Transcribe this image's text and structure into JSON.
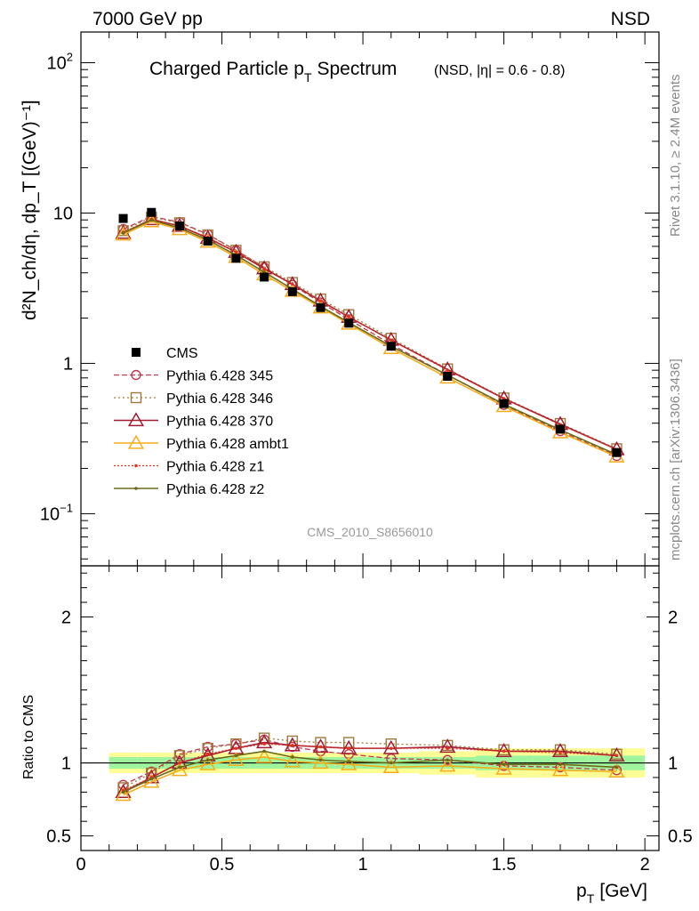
{
  "header": {
    "beam": "7000 GeV pp",
    "process": "NSD",
    "title_main": "Charged Particle p",
    "title_sub": "T",
    "title_main2": "Spectrum",
    "title_cond": "(NSD, |η| = 0.6 - 0.8)",
    "analysis_id": "CMS_2010_S8656010",
    "side_rivet": "Rivet 3.1.10, ≥ 2.4M events",
    "side_url": "mcplots.cern.ch [arXiv:1306.3436]"
  },
  "chart_data": {
    "type": "line",
    "x_unit_label": "p_T [GeV]",
    "xlabel_main": "p",
    "xlabel_sub": "T",
    "xlabel_tail": "[GeV]",
    "ylabel": "d²N_ch/dη, dp_T [(GeV)⁻¹]",
    "ratio_ylabel": "Ratio to CMS",
    "xlim": [
      0,
      2.05
    ],
    "ylim": [
      0.045,
      160
    ],
    "yscale": "log",
    "ratio_ylim": [
      0.4,
      2.35
    ],
    "x_ticks": [
      "0",
      "0.5",
      "1",
      "1.5",
      "2"
    ],
    "y_ticks": [
      "10^-1",
      "1",
      "10",
      "10^2"
    ],
    "ratio_ticks": [
      "0.5",
      "1",
      "2"
    ],
    "legend_position": "middle-left",
    "data": {
      "name": "CMS",
      "x": [
        0.15,
        0.25,
        0.35,
        0.45,
        0.55,
        0.65,
        0.75,
        0.85,
        0.95,
        1.1,
        1.3,
        1.5,
        1.7,
        1.9
      ],
      "y": [
        9.2,
        10.1,
        8.2,
        6.5,
        5.0,
        3.75,
        3.0,
        2.35,
        1.85,
        1.3,
        0.82,
        0.54,
        0.365,
        0.255
      ],
      "band_inner": [
        0.04,
        0.04,
        0.04,
        0.04,
        0.04,
        0.04,
        0.04,
        0.04,
        0.04,
        0.04,
        0.04,
        0.05,
        0.05,
        0.05
      ],
      "band_outer": [
        0.07,
        0.07,
        0.07,
        0.07,
        0.07,
        0.07,
        0.07,
        0.07,
        0.07,
        0.07,
        0.08,
        0.1,
        0.1,
        0.1
      ]
    },
    "series": [
      {
        "name": "Pythia 6.428 345",
        "color": "#c0394f",
        "dash": "6,3",
        "marker": "circle",
        "ratio": [
          0.85,
          0.94,
          1.06,
          1.11,
          1.13,
          1.16,
          1.11,
          1.08,
          1.06,
          1.03,
          1.02,
          0.98,
          0.97,
          0.95
        ]
      },
      {
        "name": "Pythia 6.428 346",
        "color": "#a07a3c",
        "dash": "2,3",
        "marker": "square",
        "ratio": [
          0.83,
          0.93,
          1.05,
          1.1,
          1.13,
          1.17,
          1.15,
          1.14,
          1.14,
          1.13,
          1.12,
          1.09,
          1.09,
          1.06
        ]
      },
      {
        "name": "Pythia 6.428 370",
        "color": "#a01c32",
        "dash": "",
        "marker": "triangle",
        "ratio": [
          0.8,
          0.9,
          1.0,
          1.05,
          1.1,
          1.14,
          1.12,
          1.11,
          1.1,
          1.1,
          1.11,
          1.08,
          1.08,
          1.05
        ]
      },
      {
        "name": "Pythia 6.428 ambt1",
        "color": "#f5ac1c",
        "dash": "",
        "marker": "triangle",
        "ratio": [
          0.78,
          0.87,
          0.95,
          0.99,
          1.02,
          1.04,
          1.01,
          1.0,
          0.99,
          0.97,
          0.98,
          0.96,
          0.95,
          0.94
        ]
      },
      {
        "name": "Pythia 6.428 z1",
        "color": "#e2311d",
        "dash": "2,2",
        "marker": "dot",
        "ratio": [
          0.81,
          0.9,
          1.0,
          1.06,
          1.1,
          1.13,
          1.12,
          1.11,
          1.1,
          1.1,
          1.1,
          1.08,
          1.07,
          1.05
        ]
      },
      {
        "name": "Pythia 6.428 z2",
        "color": "#6b6b1a",
        "dash": "",
        "marker": "dot",
        "ratio": [
          0.8,
          0.89,
          0.97,
          1.02,
          1.05,
          1.08,
          1.04,
          1.02,
          1.01,
          1.0,
          1.02,
          0.99,
          0.99,
          0.97
        ]
      }
    ]
  }
}
